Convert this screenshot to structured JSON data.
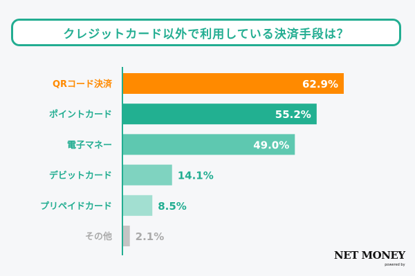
{
  "chart_data": {
    "type": "bar",
    "orientation": "horizontal",
    "title": "クレジットカード以外で利用している決済手段は？",
    "categories": [
      "QRコード決済",
      "ポイントカード",
      "電子マネー",
      "デビットカード",
      "プリペイドカード",
      "その他"
    ],
    "values": [
      62.9,
      55.2,
      49.0,
      14.1,
      8.5,
      2.1
    ],
    "value_labels": [
      "62.9%",
      "55.2%",
      "49.0%",
      "14.1%",
      "8.5%",
      "2.1%"
    ],
    "bar_colors": [
      "#ff8a00",
      "#22b091",
      "#5ec8b0",
      "#7fd3c0",
      "#a2dfd1",
      "#c4c4c4"
    ],
    "label_colors": [
      "#ff8a00",
      "#22ad91",
      "#22ad91",
      "#22ad91",
      "#22ad91",
      "#aaaaaa"
    ],
    "xlim": [
      0,
      100
    ],
    "grid": false
  },
  "logo": {
    "name": "NET MONEY",
    "tagline": "powered by"
  }
}
